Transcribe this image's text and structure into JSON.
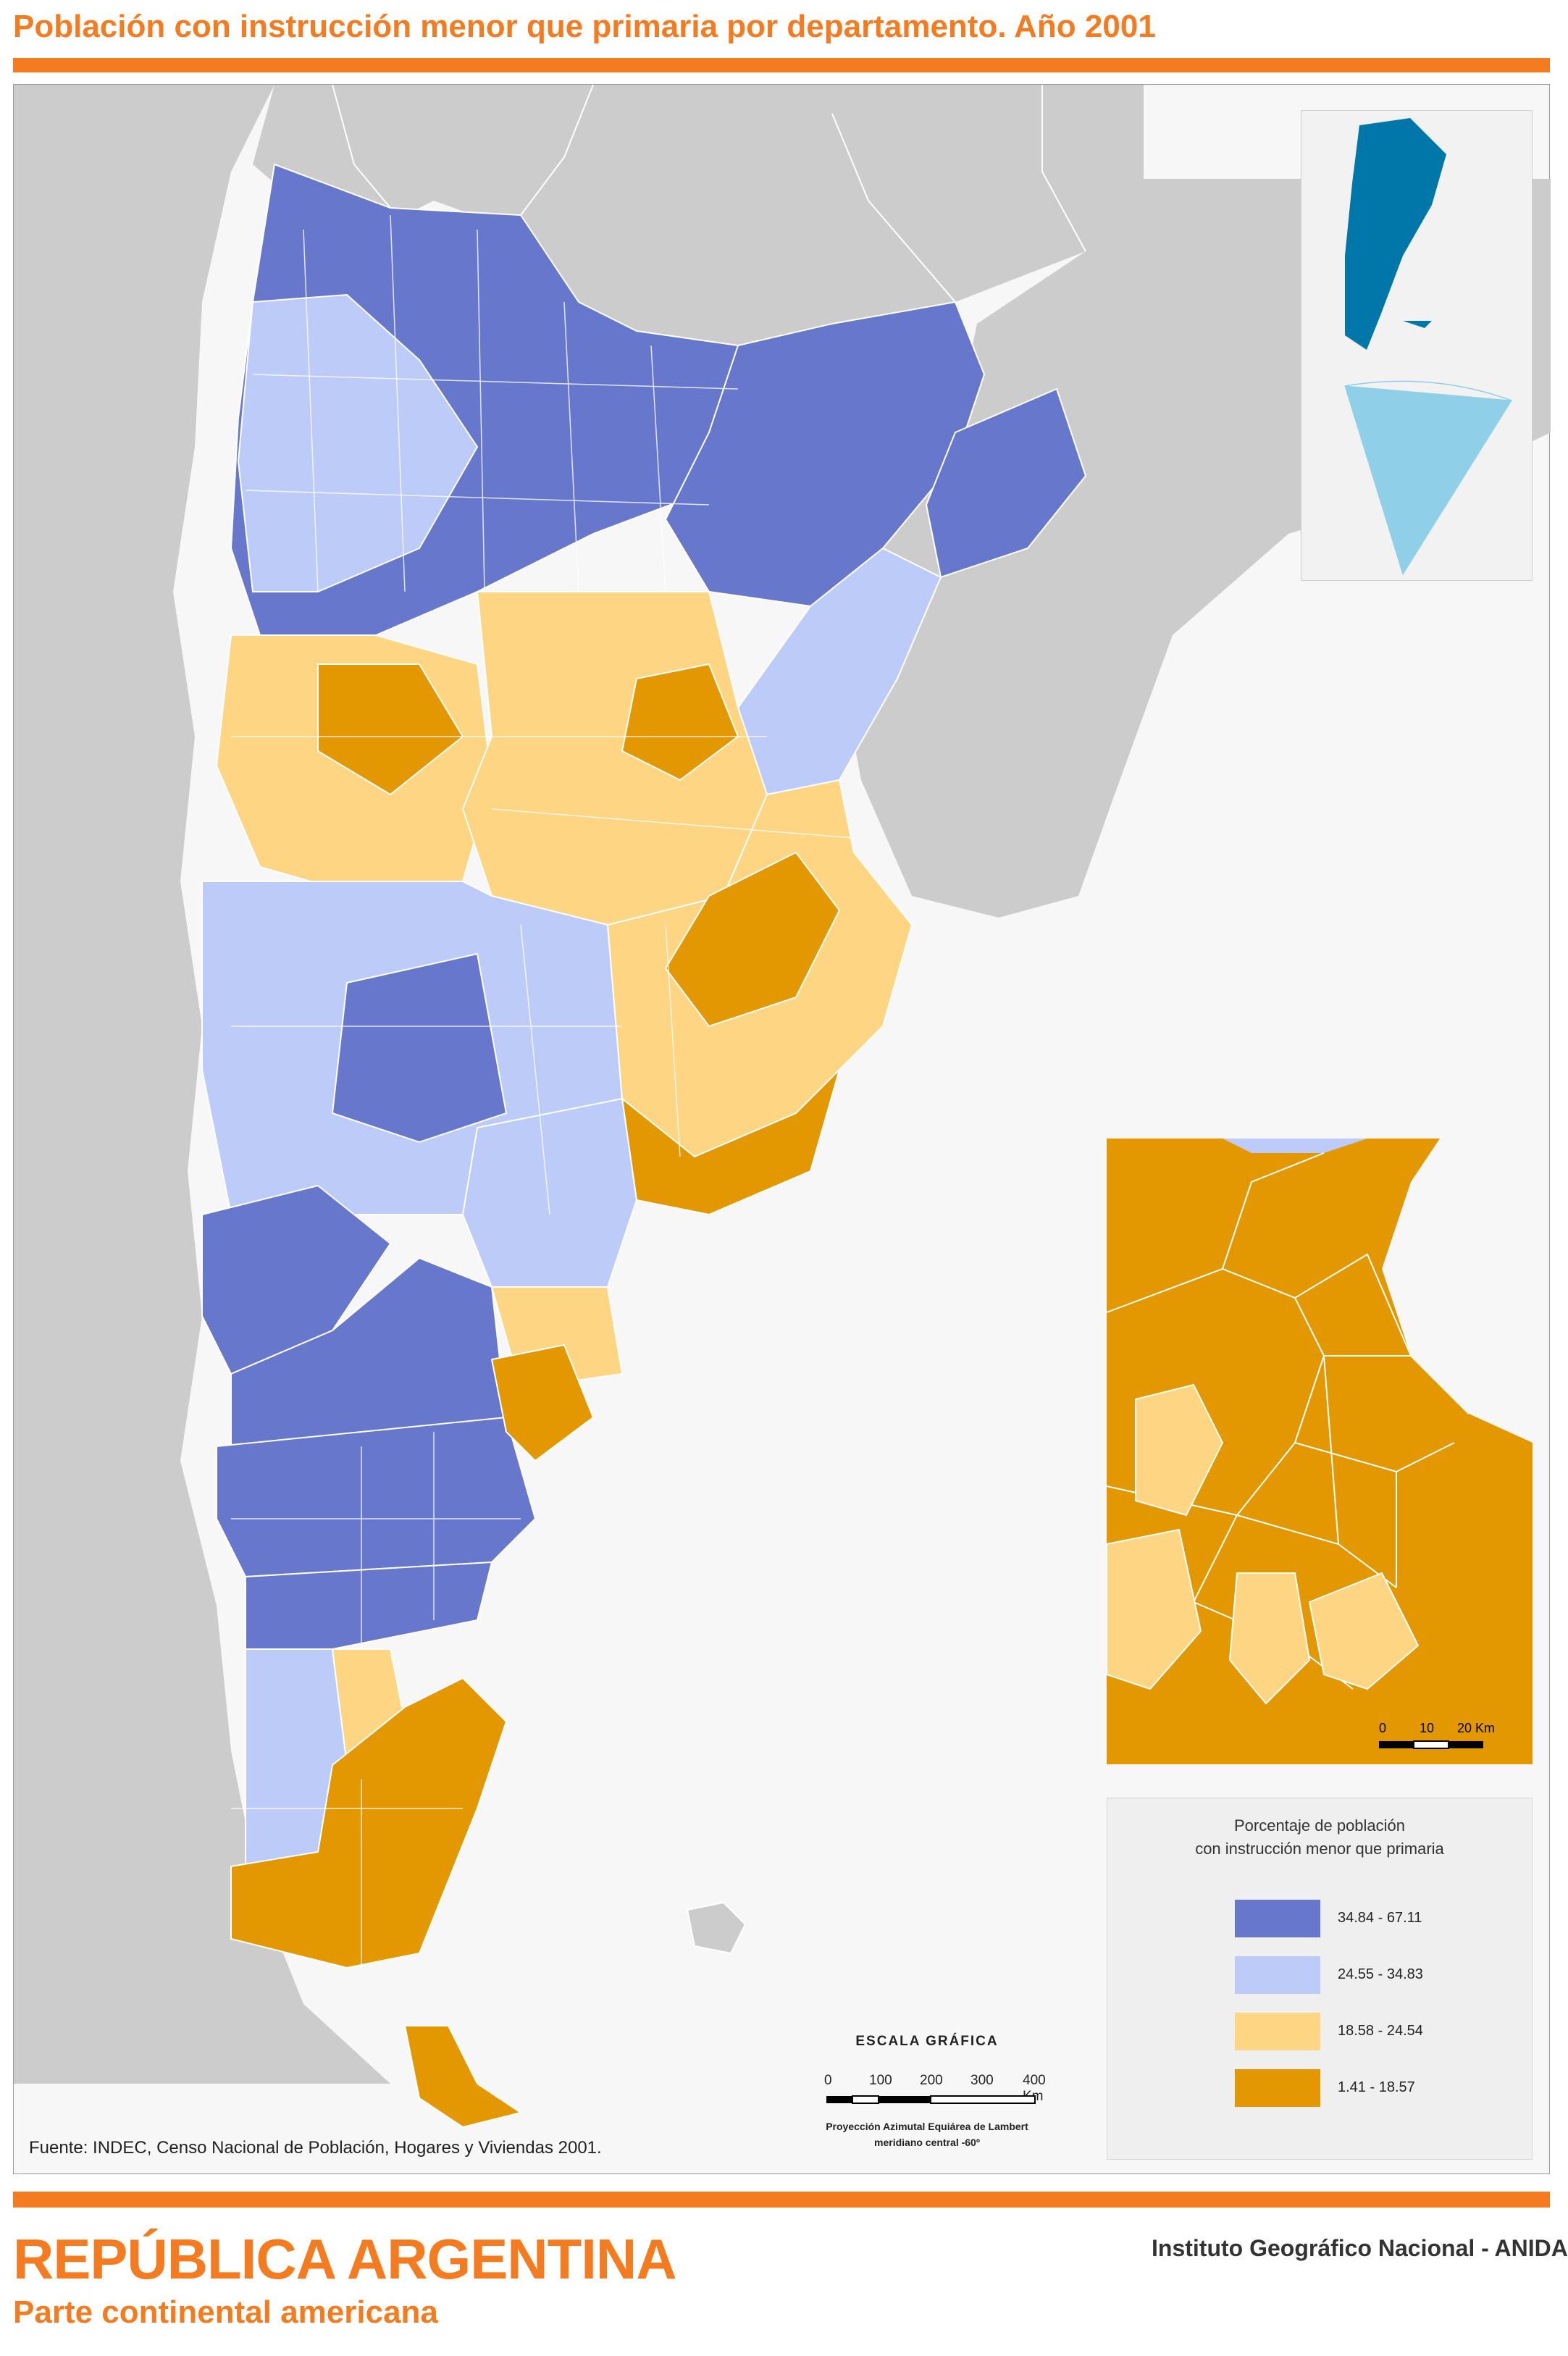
{
  "title": "Población con instrucción menor que primaria por departamento. Año 2001",
  "legend": {
    "title": "Porcentaje de población\ncon instrucción menor que primaria",
    "classes": [
      {
        "label": "34.84 - 67.11",
        "color": "#6677cc"
      },
      {
        "label": "24.55 - 34.83",
        "color": "#bccbf7"
      },
      {
        "label": "18.58 - 24.54",
        "color": "#fdd583"
      },
      {
        "label": "1.41 - 18.57",
        "color": "#e39700"
      }
    ]
  },
  "scale": {
    "title": "ESCALA GRÁFICA",
    "ticks": [
      "0",
      "100",
      "200",
      "300",
      "400 Km"
    ],
    "projection_line1": "Proyección Azimutal Equiárea de Lambert",
    "projection_line2": "meridiano central -60º"
  },
  "inset_scale": {
    "ticks": [
      "0",
      "10",
      "20 Km"
    ]
  },
  "source": "Fuente: INDEC, Censo Nacional de Población, Hogares y Viviendas 2001.",
  "footer": {
    "country": "REPÚBLICA ARGENTINA",
    "subtitle": "Parte continental americana",
    "institute": "Instituto Geográfico Nacional - ANIDA"
  },
  "colors": {
    "accent": "#f47b20",
    "neighbor_land": "#cccccc",
    "ocean": "#f7f7f7",
    "globe_argentina": "#0077a8",
    "antarctic_sector": "#8fcfe8"
  }
}
